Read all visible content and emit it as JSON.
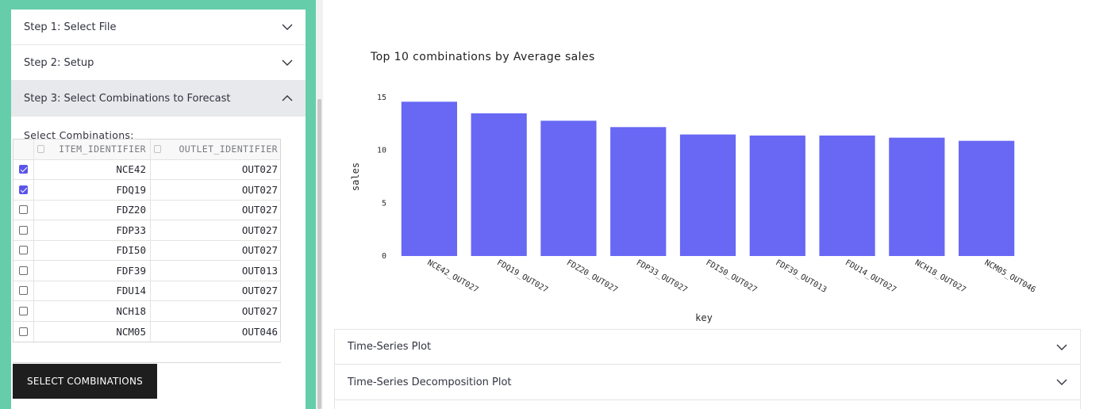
{
  "sidebar": {
    "steps": [
      {
        "label": "Step 1: Select File",
        "expanded": false
      },
      {
        "label": "Step 2: Setup",
        "expanded": false
      },
      {
        "label": "Step 3: Select Combinations to Forecast",
        "expanded": true
      }
    ],
    "select_label": "Select Combinations:",
    "table": {
      "headers": [
        "ITEM_IDENTIFIER",
        "OUTLET_IDENTIFIER"
      ],
      "rows": [
        {
          "checked": true,
          "item": "NCE42",
          "outlet": "OUT027"
        },
        {
          "checked": true,
          "item": "FDQ19",
          "outlet": "OUT027"
        },
        {
          "checked": false,
          "item": "FDZ20",
          "outlet": "OUT027"
        },
        {
          "checked": false,
          "item": "FDP33",
          "outlet": "OUT027"
        },
        {
          "checked": false,
          "item": "FDI50",
          "outlet": "OUT027"
        },
        {
          "checked": false,
          "item": "FDF39",
          "outlet": "OUT013"
        },
        {
          "checked": false,
          "item": "FDU14",
          "outlet": "OUT027"
        },
        {
          "checked": false,
          "item": "NCH18",
          "outlet": "OUT027"
        },
        {
          "checked": false,
          "item": "NCM05",
          "outlet": "OUT046"
        }
      ]
    },
    "button_label": "SELECT COMBINATIONS",
    "accent_color": "#66cdaa"
  },
  "chart_data": {
    "type": "bar",
    "title": "Top 10 combinations by Average sales",
    "xlabel": "key",
    "ylabel": "sales",
    "categories": [
      "NCE42_OUT027",
      "FDQ19_OUT027",
      "FDZ20_OUT027",
      "FDP33_OUT027",
      "FDI50_OUT027",
      "FDF39_OUT013",
      "FDU14_OUT027",
      "NCH18_OUT027",
      "NCM05_OUT046"
    ],
    "values": [
      14.6,
      13.5,
      12.8,
      12.2,
      11.5,
      11.4,
      11.4,
      11.2,
      10.9
    ],
    "yticks": [
      0,
      5,
      10,
      15
    ],
    "ylim": [
      0,
      15
    ],
    "bar_color": "#6868f4",
    "grid": false
  },
  "main": {
    "expanders": [
      "Time-Series Plot",
      "Time-Series Decomposition Plot"
    ]
  }
}
